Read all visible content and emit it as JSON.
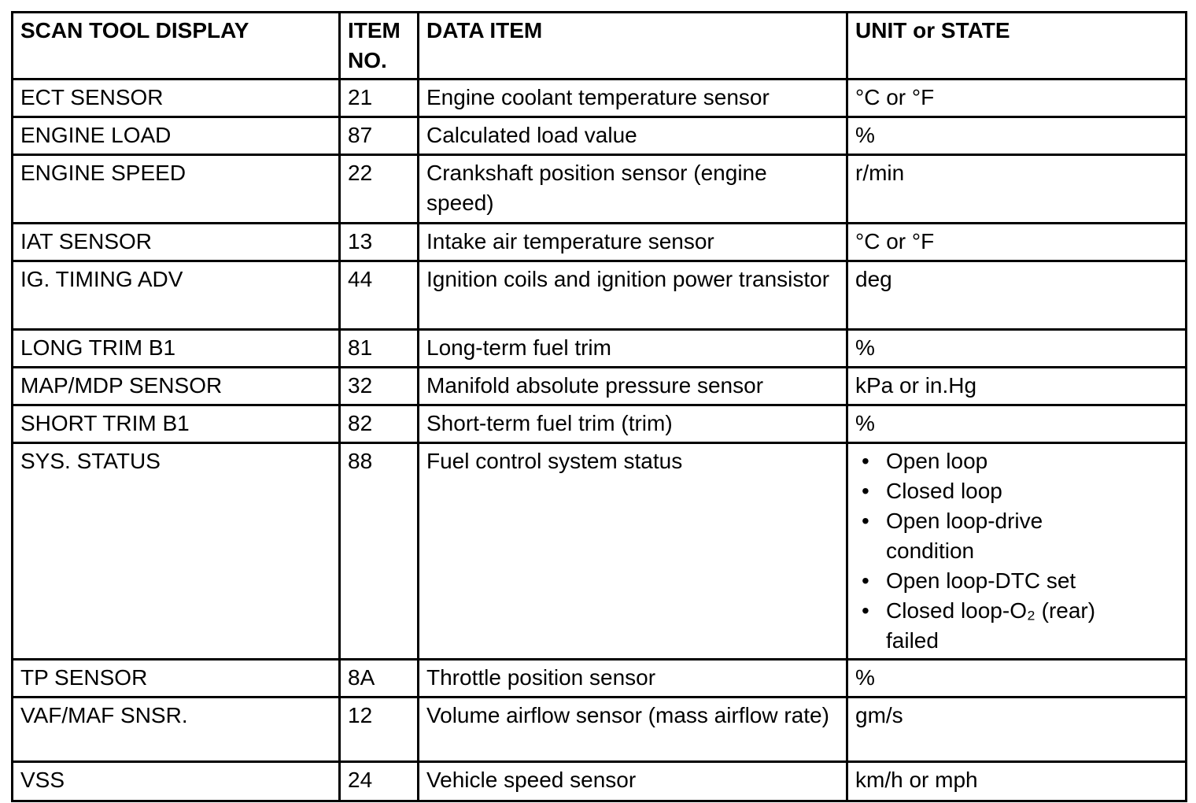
{
  "table": {
    "columns": [
      {
        "label": "SCAN TOOL DISPLAY"
      },
      {
        "label": "ITEM NO."
      },
      {
        "label": "DATA ITEM"
      },
      {
        "label": "UNIT or STATE"
      }
    ],
    "rows": [
      {
        "display": "ECT SENSOR",
        "item_no": "21",
        "data_item": "Engine coolant temperature sensor",
        "unit": "°C or °F"
      },
      {
        "display": "ENGINE LOAD",
        "item_no": "87",
        "data_item": "Calculated load value",
        "unit": "%"
      },
      {
        "display": "ENGINE SPEED",
        "item_no": "22",
        "data_item": "Crankshaft position sensor (engine speed)",
        "unit": "r/min"
      },
      {
        "display": "IAT SENSOR",
        "item_no": "13",
        "data_item": "Intake air temperature sensor",
        "unit": "°C or °F"
      },
      {
        "display": "IG. TIMING ADV",
        "item_no": "44",
        "data_item": "Ignition coils and ignition power transistor",
        "unit": "deg"
      },
      {
        "display": "LONG TRIM B1",
        "item_no": "81",
        "data_item": "Long-term fuel trim",
        "unit": "%"
      },
      {
        "display": "MAP/MDP SENSOR",
        "item_no": "32",
        "data_item": "Manifold absolute pressure sensor",
        "unit": "kPa or in.Hg"
      },
      {
        "display": "SHORT TRIM B1",
        "item_no": "82",
        "data_item": "Short-term fuel trim (trim)",
        "unit": "%"
      },
      {
        "display": "SYS. STATUS",
        "item_no": "88",
        "data_item": "Fuel control system status",
        "unit_list": [
          "Open loop",
          "Closed loop",
          "Open loop-drive condition",
          "Open loop-DTC set",
          "Closed loop-O₂ (rear) failed"
        ]
      },
      {
        "display": "TP SENSOR",
        "item_no": "8A",
        "data_item": "Throttle position sensor",
        "unit": "%"
      },
      {
        "display": "VAF/MAF SNSR.",
        "item_no": "12",
        "data_item": "Volume airflow sensor (mass airflow rate)",
        "unit": "gm/s"
      },
      {
        "display": "VSS",
        "item_no": "24",
        "data_item": "Vehicle speed sensor",
        "unit": "km/h or mph"
      }
    ],
    "colors": {
      "text": "#000000",
      "border": "#000000",
      "background": "#ffffff"
    }
  }
}
